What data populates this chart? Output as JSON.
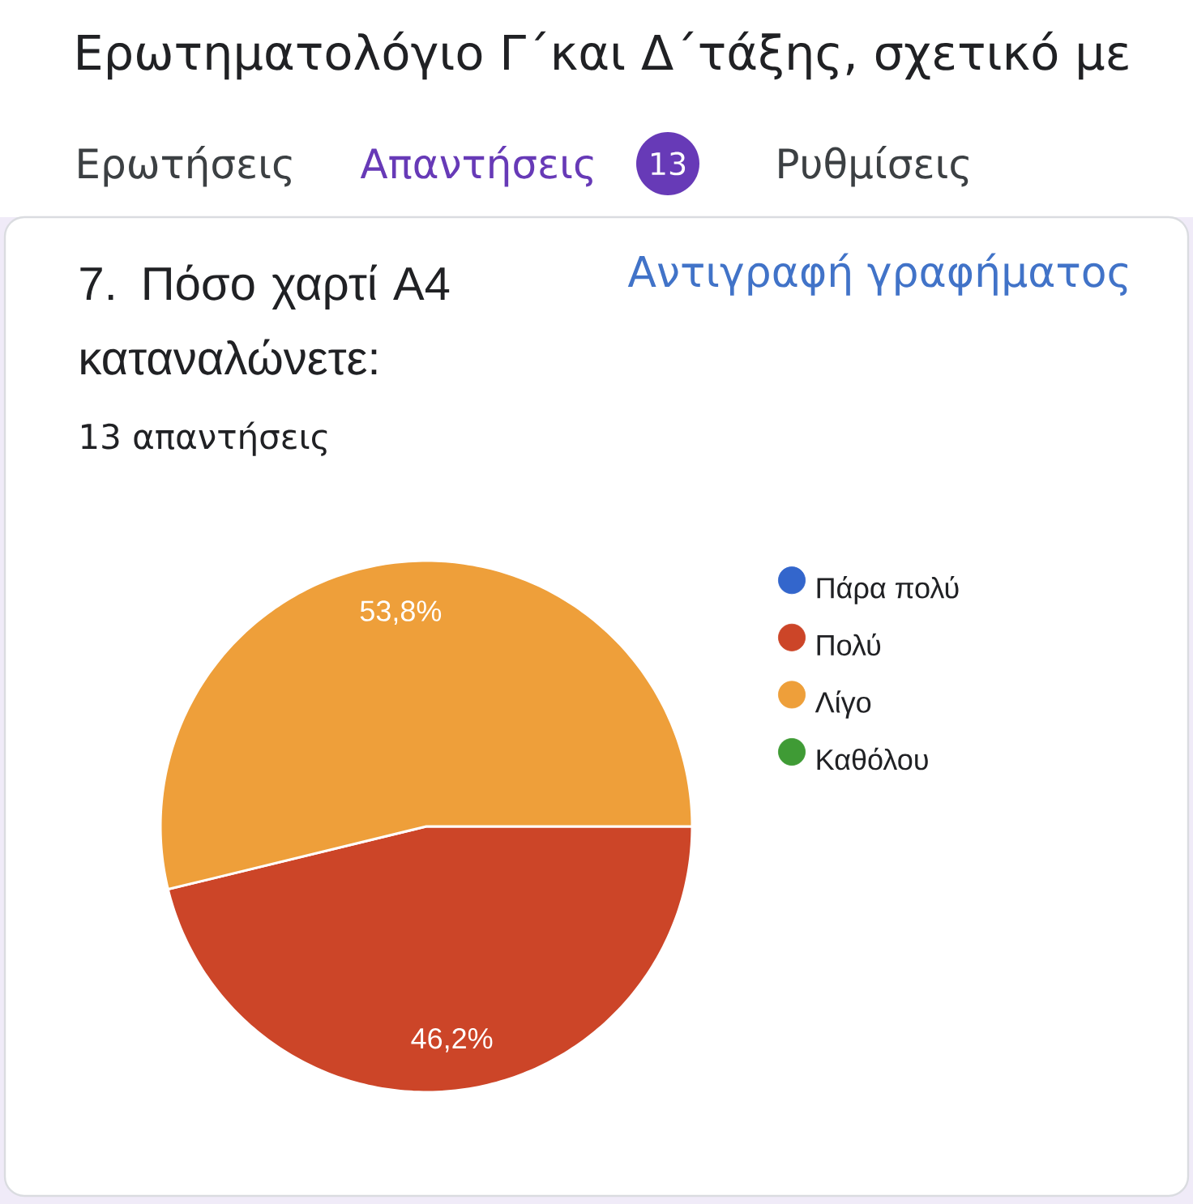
{
  "chart_data": {
    "type": "pie",
    "title": "7. Πόσο χαρτί A4 καταναλώνετε:",
    "subtitle": "13 απαντήσεις",
    "categories": [
      "Πάρα πολύ",
      "Πολύ",
      "Λίγο",
      "Καθόλου"
    ],
    "values": [
      0,
      46.2,
      53.8,
      0
    ],
    "colors": [
      "#3366cc",
      "#cc4528",
      "#ee9f3a",
      "#3f9b35"
    ],
    "value_labels": [
      null,
      "46,2%",
      "53,8%",
      null
    ],
    "legend": "top right",
    "annotations": [
      "Ερωτηματολόγιο Γ΄και Δ΄τάξης, σχετικό με",
      "Ερωτήσεις",
      "Απαντήσεις",
      "13",
      "Ρυθμίσεις",
      "Αντιγραφή γραφήματος"
    ]
  }
}
